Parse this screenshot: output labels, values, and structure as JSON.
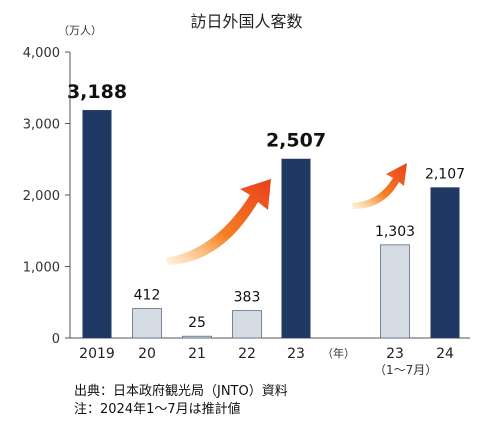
{
  "chart_data": {
    "type": "bar",
    "title": "訪日外国人客数",
    "unit": "（万人）",
    "categories": [
      "2019",
      "20",
      "21",
      "22",
      "23",
      "23",
      "24"
    ],
    "values": [
      3188,
      412,
      25,
      383,
      2507,
      1303,
      2107
    ],
    "value_labels": [
      "3,188",
      "412",
      "25",
      "383",
      "2,507",
      "1,303",
      "2,107"
    ],
    "highlight": [
      true,
      false,
      false,
      false,
      true,
      false,
      true
    ],
    "emphasized_labels": [
      true,
      false,
      false,
      false,
      true,
      false,
      false
    ],
    "ylim": [
      0,
      4000
    ],
    "yticks": [
      0,
      1000,
      2000,
      3000,
      4000
    ],
    "ytick_labels": [
      "0",
      "1,000",
      "2,000",
      "3,000",
      "4,000"
    ],
    "year_unit": "（年）",
    "period_note": "（1～7月）",
    "colors": {
      "dark": "#1f3864",
      "light": "#d6dce4",
      "arrow_start": "#f79646",
      "arrow_end": "#e8501e"
    }
  },
  "notes": {
    "source": "出典：日本政府観光局（JNTO）資料",
    "remark": "注：2024年1～7月は推計値"
  }
}
